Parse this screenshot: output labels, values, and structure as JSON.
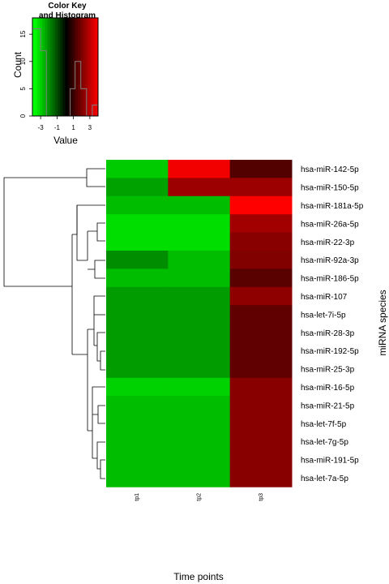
{
  "chart_data": {
    "type": "heatmap",
    "title": "",
    "xlabel": "Time points",
    "ylabel": "miRNA species",
    "columns": [
      "tp1",
      "tp2",
      "tp3"
    ],
    "rows": [
      {
        "label": "hsa-miR-142-5p",
        "values": [
          -2.9,
          3.8,
          1.4
        ]
      },
      {
        "label": "hsa-miR-150-5p",
        "values": [
          -2.3,
          2.5,
          2.5
        ]
      },
      {
        "label": "hsa-miR-181a-5p",
        "values": [
          -2.7,
          -2.7,
          4.0
        ]
      },
      {
        "label": "hsa-miR-26a-5p",
        "values": [
          -3.2,
          -3.2,
          2.6
        ]
      },
      {
        "label": "hsa-miR-22-3p",
        "values": [
          -3.2,
          -3.2,
          2.2
        ]
      },
      {
        "label": "hsa-miR-92a-3p",
        "values": [
          -2.0,
          -2.7,
          2.1
        ]
      },
      {
        "label": "hsa-miR-186-5p",
        "values": [
          -2.7,
          -2.7,
          1.5
        ]
      },
      {
        "label": "hsa-miR-107",
        "values": [
          -2.2,
          -2.2,
          2.3
        ]
      },
      {
        "label": "hsa-let-7i-5p",
        "values": [
          -2.2,
          -2.2,
          1.6
        ]
      },
      {
        "label": "hsa-miR-28-3p",
        "values": [
          -2.2,
          -2.2,
          1.6
        ]
      },
      {
        "label": "hsa-miR-192-5p",
        "values": [
          -2.2,
          -2.2,
          1.6
        ]
      },
      {
        "label": "hsa-miR-25-3p",
        "values": [
          -2.2,
          -2.2,
          1.6
        ]
      },
      {
        "label": "hsa-miR-16-5p",
        "values": [
          -3.0,
          -3.0,
          2.2
        ]
      },
      {
        "label": "hsa-miR-21-5p",
        "values": [
          -2.7,
          -2.7,
          2.2
        ]
      },
      {
        "label": "hsa-let-7f-5p",
        "values": [
          -2.7,
          -2.7,
          2.2
        ]
      },
      {
        "label": "hsa-let-7g-5p",
        "values": [
          -2.7,
          -2.7,
          2.2
        ]
      },
      {
        "label": "hsa-miR-191-5p",
        "values": [
          -2.7,
          -2.7,
          2.2
        ]
      },
      {
        "label": "hsa-let-7a-5p",
        "values": [
          -2.7,
          -2.7,
          2.2
        ]
      }
    ],
    "color_scale": {
      "low": "#00ff00",
      "mid": "#000000",
      "high": "#ff0000",
      "range": [
        -3.7,
        4.0
      ]
    },
    "color_key": {
      "title_line1": "Color Key",
      "title_line2": "and Histogram",
      "xlabel": "Value",
      "ylabel": "Count",
      "xticks": [
        "-3",
        "-1",
        "1",
        "3"
      ],
      "xtick_values": [
        -3,
        -1,
        1,
        3
      ],
      "yticks": [
        "0",
        "5",
        "10",
        "15"
      ],
      "ytick_values": [
        0,
        5,
        10,
        15
      ],
      "ylim": [
        0,
        18
      ],
      "histogram_steps": [
        {
          "x0": -4.0,
          "x1": -3.0,
          "count": 16
        },
        {
          "x0": -3.0,
          "x1": -2.3,
          "count": 12
        },
        {
          "x0": -2.3,
          "x1": 0.6,
          "count": 0
        },
        {
          "x0": 0.6,
          "x1": 1.2,
          "count": 5
        },
        {
          "x0": 1.2,
          "x1": 1.9,
          "count": 10
        },
        {
          "x0": 1.9,
          "x1": 2.6,
          "count": 5
        },
        {
          "x0": 2.6,
          "x1": 3.3,
          "count": 0
        },
        {
          "x0": 3.3,
          "x1": 4.0,
          "count": 2
        }
      ],
      "trace_color": "#808080",
      "xlim": [
        -4.0,
        4.0
      ]
    },
    "grid": false,
    "legend": "top-left color key"
  }
}
